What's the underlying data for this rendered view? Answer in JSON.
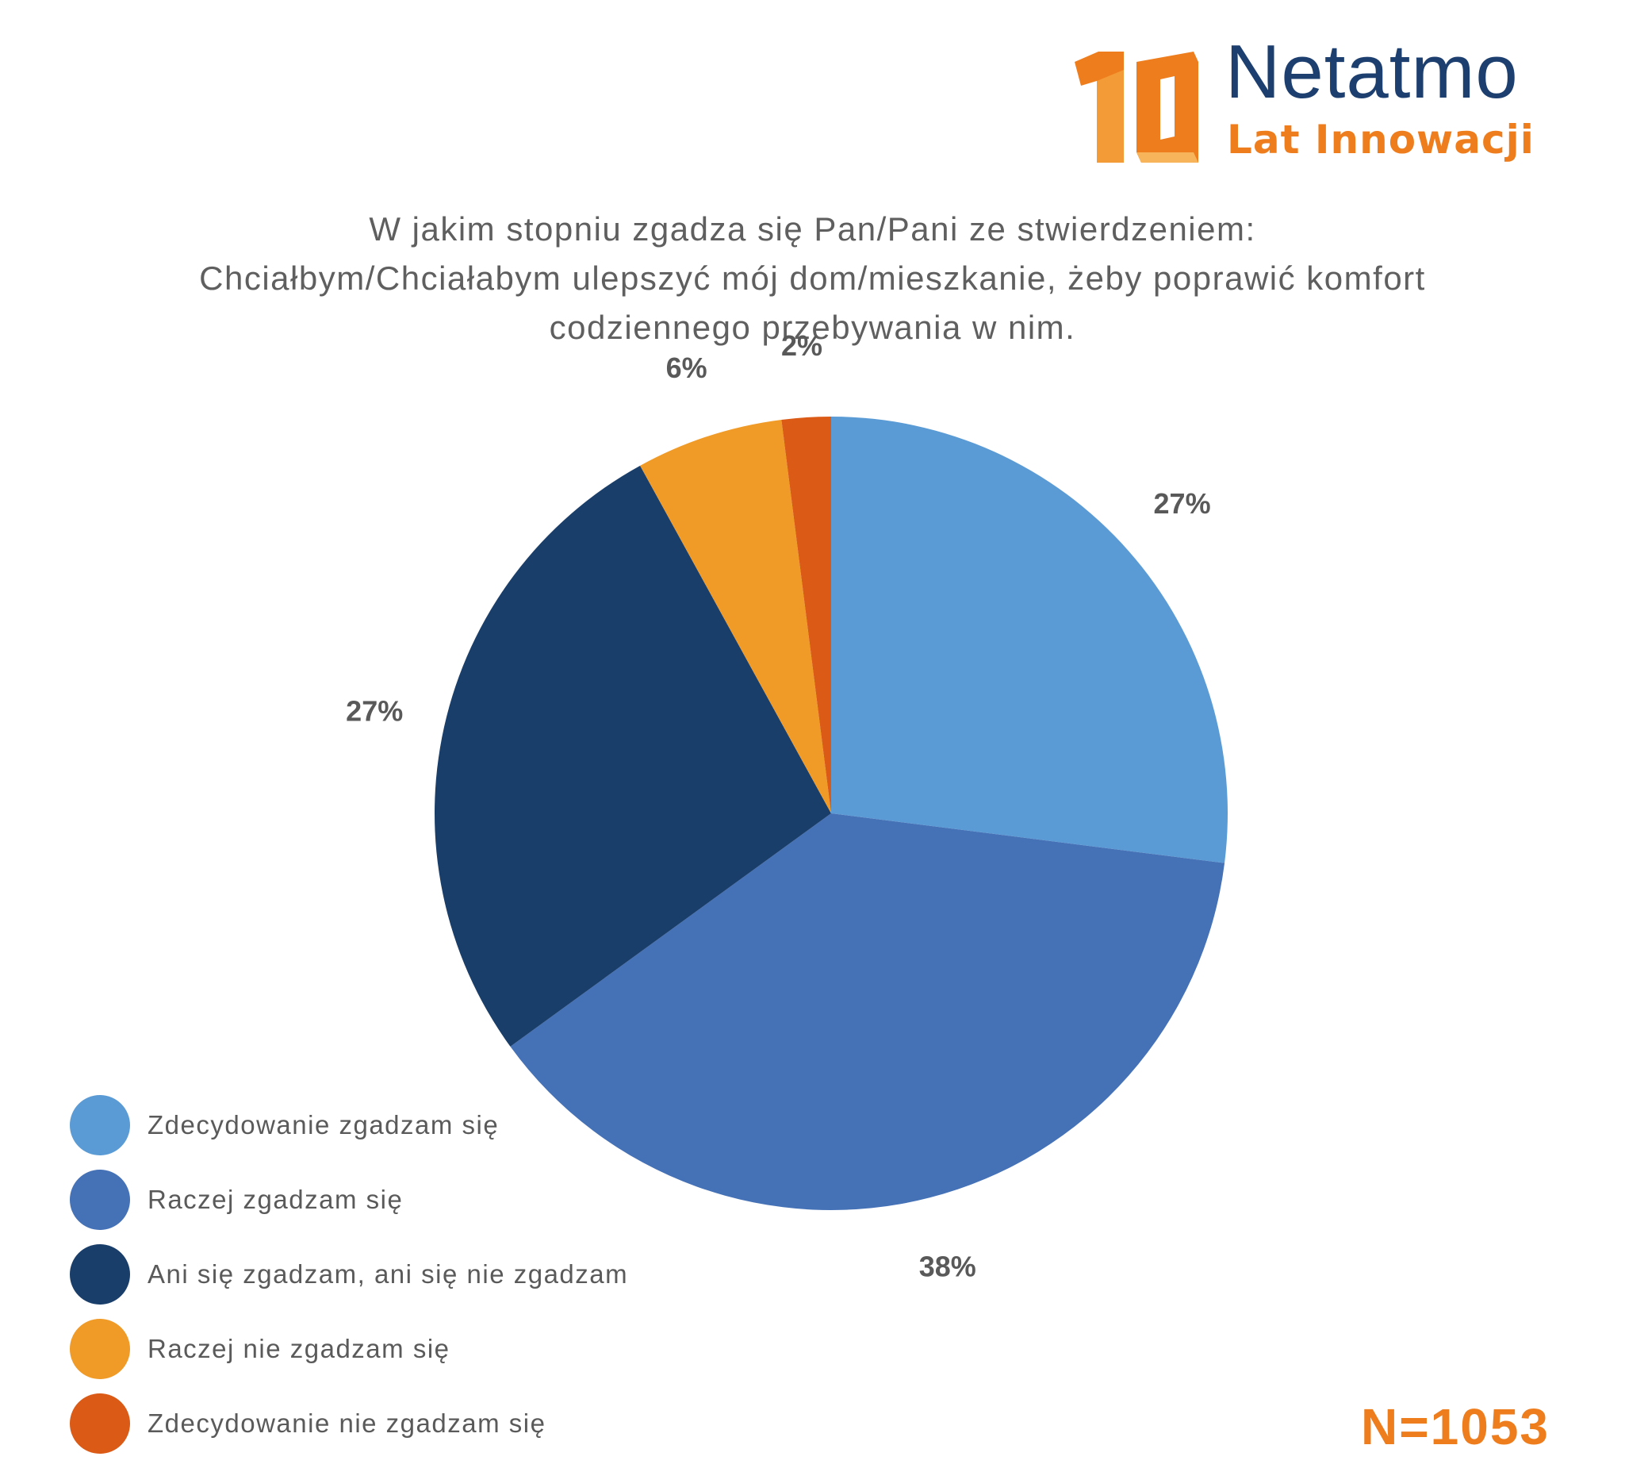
{
  "logo": {
    "number": "10",
    "brand": "Netatmo",
    "tagline": "Lat Innowacji"
  },
  "title_lines": [
    "W jakim stopniu zgadza się Pan/Pani ze stwierdzeniem:",
    "Chciałbym/Chciałabym ulepszyć mój dom/mieszkanie, żeby poprawić komfort",
    "codziennego przebywania w nim."
  ],
  "chart_data": {
    "type": "pie",
    "title": "W jakim stopniu zgadza się Pan/Pani ze stwierdzeniem: Chciałbym/Chciałabym ulepszyć mój dom/mieszkanie, żeby poprawić komfort codziennego przebywania w nim.",
    "start": "12 o'clock",
    "direction": "clockwise",
    "legend_position": "bottom-left",
    "slices": [
      {
        "label": "Zdecydowanie zgadzam się",
        "value": 27,
        "display": "27%",
        "color": "#5b9bd5"
      },
      {
        "label": "Raczej zgadzam się",
        "value": 38,
        "display": "38%",
        "color": "#4571b6"
      },
      {
        "label": "Ani się zgadzam, ani się nie zgadzam",
        "value": 27,
        "display": "27%",
        "color": "#1a3e6a"
      },
      {
        "label": "Raczej nie zgadzam się",
        "value": 6,
        "display": "6%",
        "color": "#f09a28"
      },
      {
        "label": "Zdecydowanie nie zgadzam się",
        "value": 2,
        "display": "2%",
        "color": "#da5a16"
      }
    ]
  },
  "sample_size": "N=1053",
  "colors": {
    "brand_blue": "#1d3f70",
    "brand_orange": "#ee7d1e",
    "text_gray": "#5f5f5f"
  }
}
